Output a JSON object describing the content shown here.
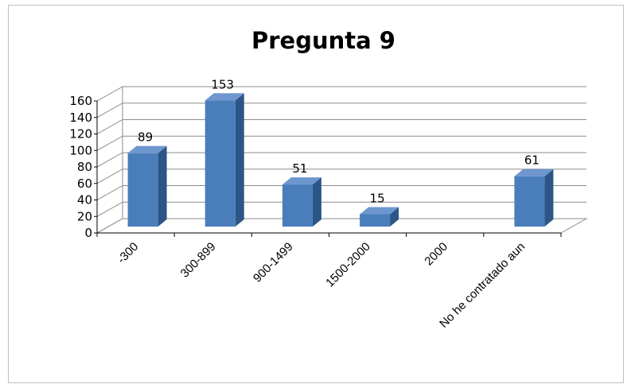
{
  "chart_data": {
    "type": "bar",
    "title": "Pregunta 9",
    "categories": [
      "-300",
      "300-899",
      "900-1499",
      "1500-2000",
      "2000",
      "No he contratado aun"
    ],
    "values": [
      89,
      153,
      51,
      15,
      null,
      61
    ],
    "data_labels": [
      "89",
      "153",
      "51",
      "15",
      "",
      "61"
    ],
    "ylim": [
      0,
      160
    ],
    "yticks": [
      0,
      20,
      40,
      60,
      80,
      100,
      120,
      140,
      160
    ],
    "xlabel": "",
    "ylabel": "",
    "grid": true,
    "legend": "none",
    "style": "3d-column",
    "colors": {
      "bar_front": "#4a7ebb",
      "bar_side": "#2c5687",
      "bar_top": "#6e97cf",
      "grid": "#8c8c8c"
    }
  }
}
